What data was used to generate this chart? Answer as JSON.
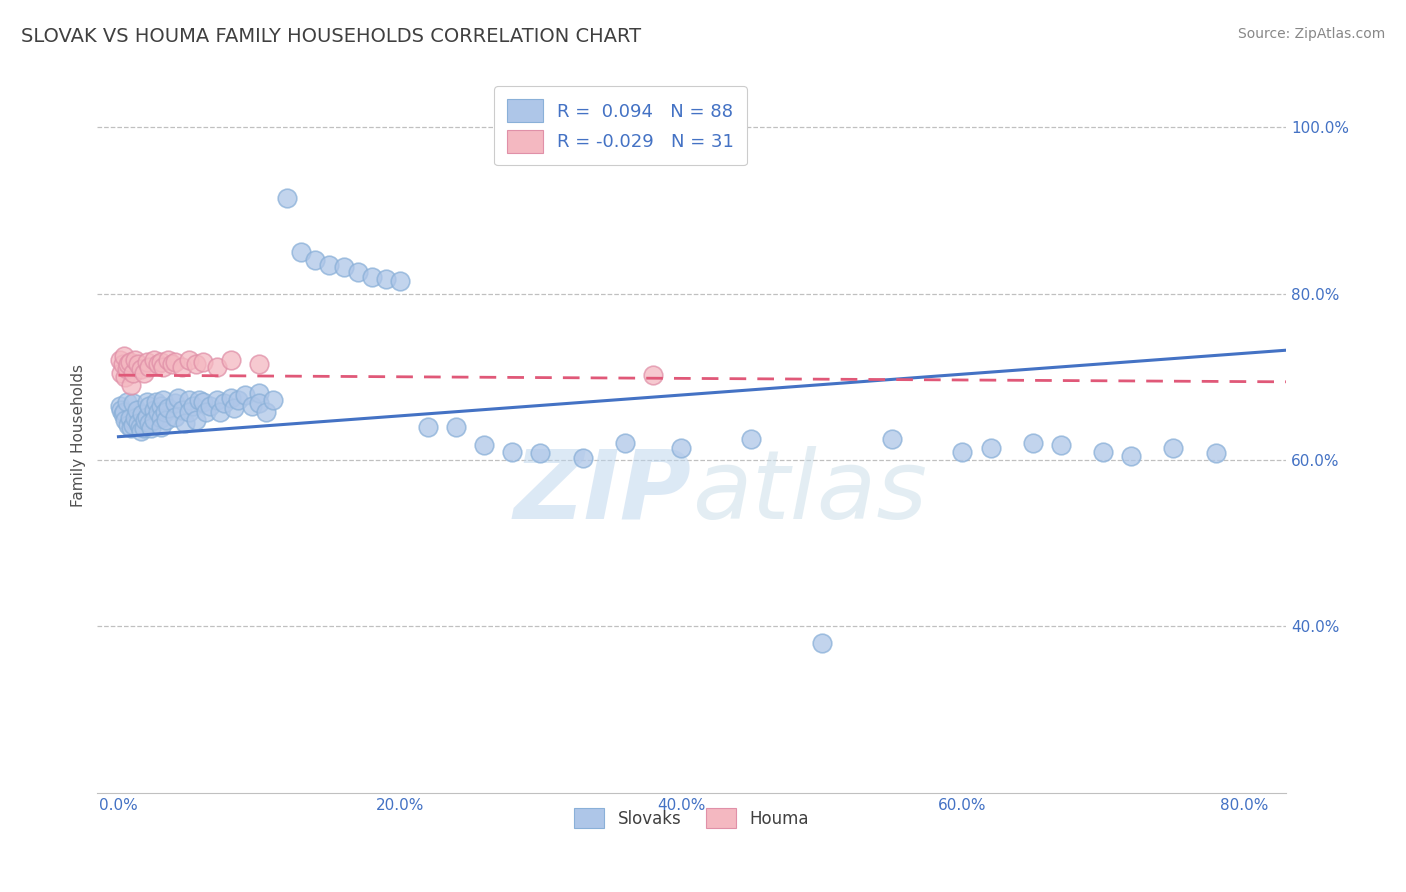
{
  "title": "SLOVAK VS HOUMA FAMILY HOUSEHOLDS CORRELATION CHART",
  "source_text": "Source: ZipAtlas.com",
  "ylabel": "Family Households",
  "xlabel_ticks": [
    "0.0%",
    "20.0%",
    "40.0%",
    "60.0%",
    "80.0%"
  ],
  "xlabel_vals": [
    0.0,
    0.2,
    0.4,
    0.6,
    0.8
  ],
  "ylabel_ticks": [
    "40.0%",
    "60.0%",
    "80.0%",
    "100.0%"
  ],
  "ylabel_vals": [
    0.4,
    0.6,
    0.8,
    1.0
  ],
  "xlim": [
    -0.015,
    0.83
  ],
  "ylim": [
    0.2,
    1.06
  ],
  "legend_entries": [
    {
      "label": "R =  0.094   N = 88",
      "color": "#aec6e8"
    },
    {
      "label": "R = -0.029   N = 31",
      "color": "#f4b8c1"
    }
  ],
  "legend_bottom": [
    "Slovaks",
    "Houma"
  ],
  "slovak_color": "#aec6e8",
  "houma_color": "#f4b8c1",
  "slovak_line_color": "#4472c4",
  "houma_line_color": "#e05878",
  "watermark": "ZIPatlas",
  "title_color": "#404040",
  "title_fontsize": 14,
  "grid_color": "#c0c0c0",
  "background_color": "#ffffff",
  "sk_line_x0": 0.0,
  "sk_line_x1": 0.83,
  "sk_line_y0": 0.628,
  "sk_line_y1": 0.732,
  "ho_line_x0": 0.0,
  "ho_line_x1": 0.83,
  "ho_line_y0": 0.702,
  "ho_line_y1": 0.694,
  "slovak_x": [
    0.001,
    0.002,
    0.003,
    0.004,
    0.005,
    0.006,
    0.007,
    0.008,
    0.009,
    0.01,
    0.01,
    0.012,
    0.013,
    0.014,
    0.015,
    0.016,
    0.017,
    0.018,
    0.019,
    0.02,
    0.02,
    0.022,
    0.022,
    0.023,
    0.025,
    0.025,
    0.027,
    0.028,
    0.03,
    0.03,
    0.03,
    0.032,
    0.033,
    0.034,
    0.035,
    0.04,
    0.04,
    0.042,
    0.045,
    0.047,
    0.05,
    0.05,
    0.053,
    0.055,
    0.057,
    0.06,
    0.062,
    0.065,
    0.07,
    0.072,
    0.075,
    0.08,
    0.082,
    0.085,
    0.09,
    0.095,
    0.1,
    0.1,
    0.105,
    0.11,
    0.12,
    0.13,
    0.14,
    0.15,
    0.16,
    0.17,
    0.18,
    0.19,
    0.2,
    0.22,
    0.24,
    0.26,
    0.28,
    0.3,
    0.33,
    0.36,
    0.4,
    0.45,
    0.5,
    0.55,
    0.6,
    0.62,
    0.65,
    0.67,
    0.7,
    0.72,
    0.75,
    0.78
  ],
  "slovak_y": [
    0.665,
    0.66,
    0.655,
    0.658,
    0.648,
    0.67,
    0.642,
    0.65,
    0.638,
    0.668,
    0.642,
    0.65,
    0.66,
    0.645,
    0.64,
    0.635,
    0.655,
    0.638,
    0.648,
    0.67,
    0.652,
    0.665,
    0.645,
    0.638,
    0.66,
    0.648,
    0.67,
    0.658,
    0.665,
    0.65,
    0.64,
    0.672,
    0.658,
    0.648,
    0.662,
    0.668,
    0.652,
    0.675,
    0.66,
    0.645,
    0.672,
    0.658,
    0.665,
    0.648,
    0.672,
    0.67,
    0.658,
    0.665,
    0.672,
    0.658,
    0.668,
    0.675,
    0.662,
    0.672,
    0.678,
    0.665,
    0.68,
    0.668,
    0.658,
    0.672,
    0.915,
    0.85,
    0.84,
    0.835,
    0.832,
    0.826,
    0.82,
    0.818,
    0.815,
    0.64,
    0.64,
    0.618,
    0.61,
    0.608,
    0.602,
    0.62,
    0.615,
    0.625,
    0.38,
    0.625,
    0.61,
    0.615,
    0.62,
    0.618,
    0.61,
    0.605,
    0.615,
    0.608
  ],
  "houma_x": [
    0.001,
    0.002,
    0.003,
    0.004,
    0.005,
    0.006,
    0.007,
    0.008,
    0.009,
    0.01,
    0.012,
    0.014,
    0.016,
    0.018,
    0.02,
    0.022,
    0.025,
    0.028,
    0.03,
    0.032,
    0.035,
    0.038,
    0.04,
    0.045,
    0.05,
    0.055,
    0.06,
    0.07,
    0.08,
    0.1,
    0.38
  ],
  "houma_y": [
    0.72,
    0.705,
    0.715,
    0.725,
    0.7,
    0.71,
    0.715,
    0.718,
    0.69,
    0.705,
    0.72,
    0.715,
    0.71,
    0.705,
    0.718,
    0.712,
    0.72,
    0.715,
    0.718,
    0.712,
    0.72,
    0.715,
    0.718,
    0.712,
    0.72,
    0.715,
    0.718,
    0.712,
    0.72,
    0.715,
    0.702
  ]
}
